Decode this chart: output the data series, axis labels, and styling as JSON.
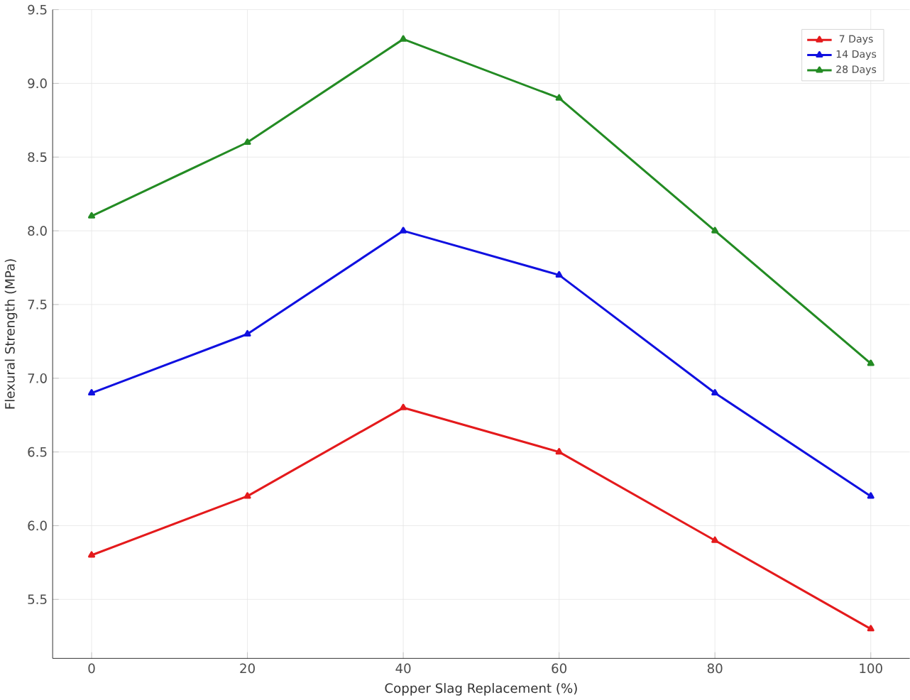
{
  "chart_data": {
    "type": "line",
    "xlabel": "Copper Slag Replacement (%)",
    "ylabel": "Flexural Strength (MPa)",
    "x": [
      0,
      20,
      40,
      60,
      80,
      100
    ],
    "series": [
      {
        "name": "7 Days",
        "color": "#e41a1c",
        "values": [
          5.8,
          6.2,
          6.8,
          6.5,
          5.9,
          5.3
        ]
      },
      {
        "name": "14 Days",
        "color": "#1010e0",
        "values": [
          6.9,
          7.3,
          8.0,
          7.7,
          6.9,
          6.2
        ]
      },
      {
        "name": "28 Days",
        "color": "#238b23",
        "values": [
          8.1,
          8.6,
          9.3,
          8.9,
          8.0,
          7.1
        ]
      }
    ],
    "xlim": [
      -5,
      105
    ],
    "ylim": [
      5.1,
      9.5
    ],
    "xticks": [
      0,
      20,
      40,
      60,
      80,
      100
    ],
    "yticks": [
      {
        "value": 5.5,
        "label": "5.5"
      },
      {
        "value": 6.0,
        "label": "6.0"
      },
      {
        "value": 6.5,
        "label": "6.5"
      },
      {
        "value": 7.0,
        "label": "7.0"
      },
      {
        "value": 7.5,
        "label": "7.5"
      },
      {
        "value": 8.0,
        "label": "8.0"
      },
      {
        "value": 8.5,
        "label": "8.5"
      },
      {
        "value": 9.0,
        "label": "9.0"
      },
      {
        "value": 9.5,
        "label": "9.5"
      }
    ],
    "grid": true,
    "legend": "top right",
    "marker": "triangle",
    "line_style": "solid"
  }
}
